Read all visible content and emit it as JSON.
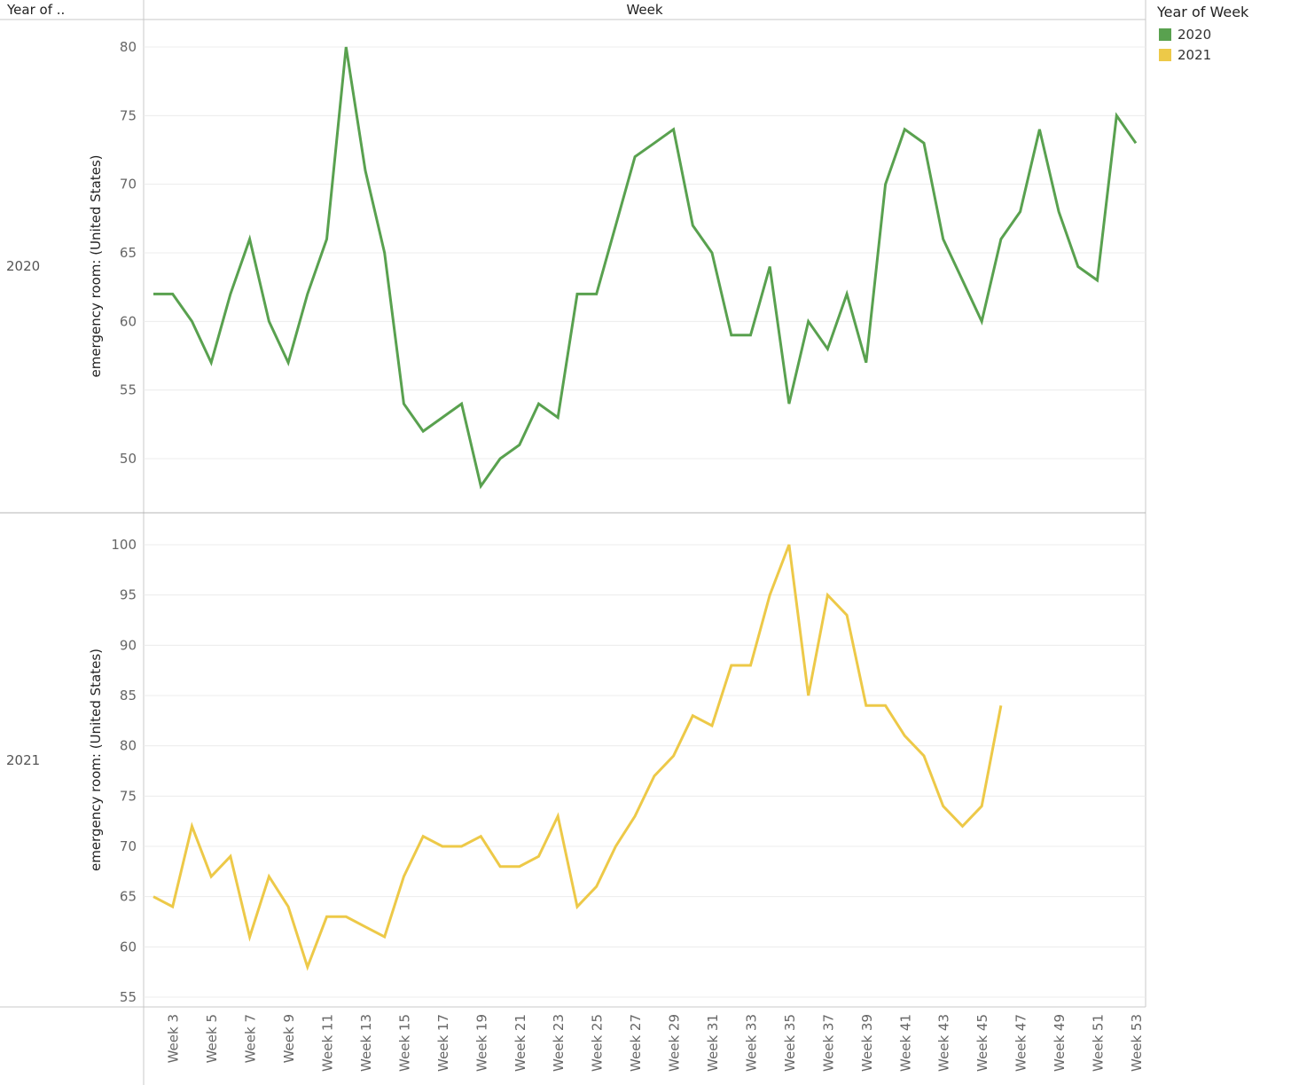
{
  "header": {
    "row_header_label": "Year of ..",
    "column_header_label": "Week"
  },
  "legend": {
    "title": "Year of Week",
    "items": [
      {
        "label": "2020",
        "color": "#59A14F"
      },
      {
        "label": "2021",
        "color": "#EDC948"
      }
    ]
  },
  "chart_data": {
    "type": "line",
    "x_tick_labels": [
      "Week 3",
      "Week 5",
      "Week 7",
      "Week 9",
      "Week 11",
      "Week 13",
      "Week 15",
      "Week 17",
      "Week 19",
      "Week 21",
      "Week 23",
      "Week 25",
      "Week 27",
      "Week 29",
      "Week 31",
      "Week 33",
      "Week 35",
      "Week 37",
      "Week 39",
      "Week 41",
      "Week 43",
      "Week 45",
      "Week 47",
      "Week 49",
      "Week 51",
      "Week 53"
    ],
    "x_tick_weeks": [
      3,
      5,
      7,
      9,
      11,
      13,
      15,
      17,
      19,
      21,
      23,
      25,
      27,
      29,
      31,
      33,
      35,
      37,
      39,
      41,
      43,
      45,
      47,
      49,
      51,
      53
    ],
    "xlabel": "Week",
    "xlim": [
      2,
      53
    ],
    "grid": true,
    "legend_position": "top-right",
    "panels": [
      {
        "row_label": "2020",
        "ylabel": "emergency room: (United States)",
        "ylim": [
          46,
          82
        ],
        "y_ticks": [
          50,
          55,
          60,
          65,
          70,
          75,
          80
        ],
        "color": "#59A14F",
        "series_name": "2020",
        "weeks": [
          2,
          3,
          4,
          5,
          6,
          7,
          8,
          9,
          10,
          11,
          12,
          13,
          14,
          15,
          16,
          17,
          18,
          19,
          20,
          21,
          22,
          23,
          24,
          25,
          26,
          27,
          28,
          29,
          30,
          31,
          32,
          33,
          34,
          35,
          36,
          37,
          38,
          39,
          40,
          41,
          42,
          43,
          44,
          45,
          46,
          47,
          48,
          49,
          50,
          51,
          52,
          53
        ],
        "values": [
          62,
          62,
          60,
          57,
          62,
          66,
          60,
          57,
          62,
          66,
          80,
          71,
          65,
          54,
          52,
          53,
          54,
          48,
          50,
          51,
          54,
          53,
          62,
          62,
          67,
          72,
          73,
          74,
          67,
          65,
          59,
          59,
          64,
          54,
          60,
          58,
          62,
          57,
          70,
          74,
          73,
          66,
          63,
          60,
          66,
          68,
          74,
          68,
          64,
          63,
          75,
          73
        ]
      },
      {
        "row_label": "2021",
        "ylabel": "emergency room: (United States)",
        "ylim": [
          54,
          102
        ],
        "y_ticks": [
          55,
          60,
          65,
          70,
          75,
          80,
          85,
          90,
          95,
          100
        ],
        "color": "#EDC948",
        "series_name": "2021",
        "weeks": [
          2,
          3,
          4,
          5,
          6,
          7,
          8,
          9,
          10,
          11,
          12,
          13,
          14,
          15,
          16,
          17,
          18,
          19,
          20,
          21,
          22,
          23,
          24,
          25,
          26,
          27,
          28,
          29,
          30,
          31,
          32,
          33,
          34,
          35,
          36,
          37,
          38,
          39,
          40,
          41,
          42,
          43,
          44,
          45,
          46
        ],
        "values": [
          65,
          64,
          72,
          67,
          69,
          61,
          67,
          64,
          58,
          63,
          63,
          62,
          61,
          67,
          71,
          70,
          70,
          71,
          68,
          68,
          69,
          73,
          64,
          66,
          70,
          73,
          77,
          79,
          83,
          82,
          88,
          88,
          95,
          100,
          85,
          95,
          93,
          84,
          84,
          81,
          79,
          74,
          72,
          74,
          84
        ]
      }
    ]
  }
}
